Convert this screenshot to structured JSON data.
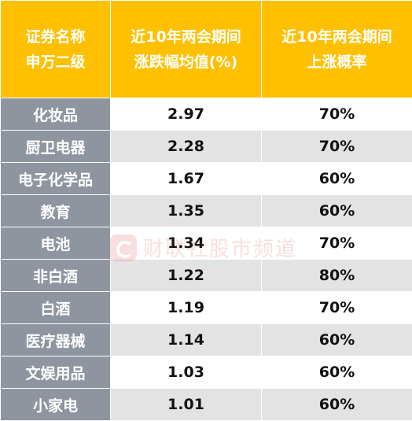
{
  "header": {
    "col1": [
      "证券名称",
      "申万二级"
    ],
    "col2": [
      "近10年两会期间",
      "涨跌幅均值(%)"
    ],
    "col3": [
      "近10年两会期间",
      "上涨概率"
    ]
  },
  "rows": [
    {
      "name": "化妆品",
      "avg": "2.97",
      "prob": "70%"
    },
    {
      "name": "厨卫电器",
      "avg": "2.28",
      "prob": "70%"
    },
    {
      "name": "电子化学品",
      "avg": "1.67",
      "prob": "60%"
    },
    {
      "name": "教育",
      "avg": "1.35",
      "prob": "60%"
    },
    {
      "name": "电池",
      "avg": "1.34",
      "prob": "70%"
    },
    {
      "name": "非白酒",
      "avg": "1.22",
      "prob": "80%"
    },
    {
      "name": "白酒",
      "avg": "1.19",
      "prob": "70%"
    },
    {
      "name": "医疗器械",
      "avg": "1.14",
      "prob": "60%"
    },
    {
      "name": "文娱用品",
      "avg": "1.03",
      "prob": "60%"
    },
    {
      "name": "小家电",
      "avg": "1.01",
      "prob": "60%"
    }
  ],
  "watermark": {
    "text": "财联社股市频道",
    "icon": "cls-logo-icon"
  },
  "colors": {
    "header_bg": "#fec000",
    "name_bg": "#8f959f",
    "alt_row_bg": "#e3e3e3"
  }
}
